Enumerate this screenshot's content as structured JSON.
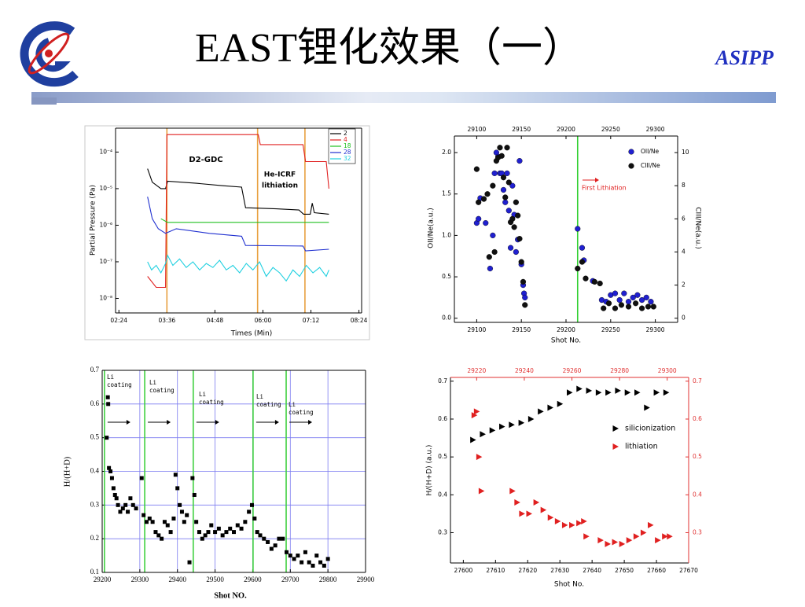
{
  "header": {
    "title": "EAST锂化效果（一）",
    "organization": "ASIPP"
  },
  "chart_data": [
    {
      "type": "line",
      "log_y": true,
      "xlabel": "Times (Min)",
      "ylabel": "Partial Pressure (Pa)",
      "xlim": [
        139,
        508
      ],
      "ylim": [
        4e-09,
        0.00045
      ],
      "xticks": [
        {
          "value": 144,
          "label": "02:24"
        },
        {
          "value": 216,
          "label": "03:36"
        },
        {
          "value": 288,
          "label": "04:48"
        },
        {
          "value": 360,
          "label": "06:00"
        },
        {
          "value": 432,
          "label": "07:12"
        },
        {
          "value": 504,
          "label": "08:24"
        }
      ],
      "yticks": [
        {
          "value": 1e-08,
          "label": "10⁻⁸"
        },
        {
          "value": 1e-07,
          "label": "10⁻⁷"
        },
        {
          "value": 1e-06,
          "label": "10⁻⁶"
        },
        {
          "value": 1e-05,
          "label": "10⁻⁵"
        },
        {
          "value": 0.0001,
          "label": "10⁻⁴"
        }
      ],
      "vlines": [
        216,
        352,
        423
      ],
      "vline_color": "#e8a040",
      "annotations": [
        "D2-GDC",
        "He-ICRF",
        "lithiation"
      ],
      "series": [
        {
          "name": "2",
          "color": "#000000",
          "marker": "line",
          "x": [
            187,
            194,
            207,
            214,
            217,
            260,
            300,
            328,
            334,
            380,
            414,
            421,
            431,
            434,
            437,
            459
          ],
          "values": [
            3.5e-05,
            1.5e-05,
            1e-05,
            1e-05,
            1.6e-05,
            1.4e-05,
            1.2e-05,
            1.1e-05,
            3e-06,
            2.8e-06,
            2.6e-06,
            2e-06,
            2e-06,
            4e-06,
            2.2e-06,
            2e-06
          ]
        },
        {
          "name": "4",
          "color": "#e02020",
          "marker": "line",
          "x": [
            187,
            200,
            214,
            216,
            280,
            353,
            356,
            420,
            424,
            455,
            459
          ],
          "values": [
            4e-08,
            2e-08,
            2e-08,
            0.0003,
            0.0003,
            0.0003,
            0.00016,
            0.00016,
            5.5e-05,
            5.5e-05,
            1e-05
          ]
        },
        {
          "name": "18",
          "color": "#20c020",
          "marker": "line",
          "x": [
            207,
            217,
            300,
            380,
            459
          ],
          "values": [
            1.5e-06,
            1.2e-06,
            1.2e-06,
            1.2e-06,
            1.2e-06
          ]
        },
        {
          "name": "28",
          "color": "#2030d0",
          "marker": "line",
          "x": [
            187,
            194,
            203,
            214,
            230,
            280,
            328,
            334,
            420,
            424,
            459
          ],
          "values": [
            6e-06,
            1.5e-06,
            8e-07,
            6e-07,
            8e-07,
            6e-07,
            5e-07,
            2.8e-07,
            2.7e-07,
            2e-07,
            2.2e-07
          ]
        },
        {
          "name": "32",
          "color": "#20d0e0",
          "marker": "line",
          "x": [
            187,
            193,
            200,
            207,
            214,
            217,
            225,
            235,
            245,
            255,
            265,
            275,
            285,
            295,
            305,
            315,
            325,
            335,
            345,
            355,
            365,
            375,
            385,
            395,
            405,
            415,
            425,
            435,
            445,
            455,
            459
          ],
          "values": [
            1e-07,
            6e-08,
            8e-08,
            5e-08,
            9e-08,
            1.5e-07,
            8e-08,
            1.2e-07,
            7e-08,
            1e-07,
            6e-08,
            9e-08,
            7e-08,
            1.1e-07,
            6e-08,
            8e-08,
            5e-08,
            9e-08,
            6e-08,
            1e-07,
            4e-08,
            7e-08,
            5e-08,
            3e-08,
            6e-08,
            4e-08,
            8e-08,
            5e-08,
            7e-08,
            4e-08,
            6e-08
          ]
        }
      ]
    },
    {
      "type": "scatter",
      "xlabel": "Shot No.",
      "ylabel": "OII/Ne(a.u.)",
      "y2label": "CIII/Ne(a.u.)",
      "xlim": [
        29075,
        29325
      ],
      "x2lim": [
        29075,
        29325
      ],
      "ylim": [
        -0.05,
        2.2
      ],
      "y2lim": [
        -0.25,
        11
      ],
      "xticks": [
        29100,
        29150,
        29200,
        29250,
        29300
      ],
      "x2ticks": [
        29100,
        29150,
        29200,
        29250,
        29300
      ],
      "yticks": [
        {
          "value": 0,
          "label": "0.0"
        },
        0.5,
        {
          "value": 1,
          "label": "1.0"
        },
        1.5,
        {
          "value": 2,
          "label": "2.0"
        }
      ],
      "y2ticks": [
        0,
        2,
        4,
        6,
        8,
        10
      ],
      "vlines": [
        29213
      ],
      "vline_color": "#30d030",
      "annotations": [
        "First Lithiation"
      ],
      "series": [
        {
          "name": "OII/Ne",
          "color": "#2020d0",
          "marker": "circle",
          "x": [
            29100,
            29102,
            29104,
            29110,
            29115,
            29118,
            29120,
            29122,
            29124,
            29126,
            29128,
            29130,
            29132,
            29134,
            29136,
            29138,
            29140,
            29142,
            29144,
            29146,
            29148,
            29150,
            29152,
            29153,
            29154,
            29213,
            29218,
            29220,
            29230,
            29240,
            29245,
            29250,
            29255,
            29260,
            29265,
            29270,
            29275,
            29280,
            29285,
            29290,
            29295
          ],
          "values": [
            1.15,
            1.2,
            1.45,
            1.15,
            0.6,
            1.0,
            1.75,
            2.0,
            1.95,
            1.75,
            1.75,
            1.55,
            1.4,
            1.75,
            1.3,
            0.85,
            1.6,
            1.25,
            0.8,
            0.95,
            1.9,
            0.65,
            0.4,
            0.3,
            0.25,
            1.08,
            0.85,
            0.7,
            0.45,
            0.22,
            0.2,
            0.28,
            0.3,
            0.22,
            0.3,
            0.2,
            0.25,
            0.28,
            0.22,
            0.25,
            0.2
          ]
        },
        {
          "name": "CIII/Ne",
          "color": "#101010",
          "marker": "circle",
          "axis": "y2",
          "x": [
            29100,
            29102,
            29108,
            29112,
            29114,
            29118,
            29120,
            29122,
            29124,
            29126,
            29128,
            29130,
            29132,
            29134,
            29136,
            29138,
            29140,
            29142,
            29144,
            29146,
            29148,
            29150,
            29152,
            29154,
            29213,
            29218,
            29222,
            29232,
            29238,
            29242,
            29248,
            29255,
            29262,
            29270,
            29278,
            29285,
            29292,
            29298
          ],
          "values": [
            9.0,
            7,
            7.2,
            7.5,
            3.7,
            8.0,
            4.0,
            9.5,
            9.7,
            10.3,
            9.8,
            8.5,
            7.3,
            10.3,
            8.2,
            5.8,
            6.0,
            5.5,
            7.0,
            6.2,
            4.8,
            3.4,
            2.2,
            0.8,
            3.0,
            3.4,
            2.4,
            2.2,
            2.1,
            0.6,
            0.9,
            0.6,
            0.8,
            0.7,
            0.9,
            0.6,
            0.7,
            0.7
          ]
        }
      ]
    },
    {
      "type": "scatter",
      "grid": true,
      "xlabel": "Shot NO.",
      "ylabel": "H/(H+D)",
      "xlim": [
        29200,
        29900
      ],
      "ylim": [
        0.1,
        0.7
      ],
      "xticks": [
        29200,
        29300,
        29400,
        29500,
        29600,
        29700,
        29800,
        29900
      ],
      "yticks": [
        0.1,
        0.2,
        0.3,
        0.4,
        0.5,
        0.6,
        0.7
      ],
      "vlines": [
        29206,
        29313,
        29442,
        29601,
        29689
      ],
      "vline_color": "#40d040",
      "annotations": [
        [
          "Li",
          "coating"
        ],
        [
          "Li",
          "coating"
        ],
        [
          "Li",
          "coating"
        ],
        [
          "Li",
          "coating"
        ],
        [
          "Li",
          "coating"
        ]
      ],
      "series": [
        {
          "name": "H/(H+D)",
          "color": "#000000",
          "marker": "square",
          "x": [
            29215,
            29216,
            29212,
            29218,
            29222,
            29226,
            29230,
            29234,
            29238,
            29242,
            29248,
            29255,
            29262,
            29268,
            29275,
            29282,
            29290,
            29305,
            29310,
            29318,
            29326,
            29334,
            29342,
            29350,
            29358,
            29366,
            29374,
            29382,
            29390,
            29395,
            29400,
            29406,
            29412,
            29418,
            29425,
            29432,
            29440,
            29445,
            29450,
            29458,
            29466,
            29474,
            29482,
            29490,
            29500,
            29510,
            29520,
            29530,
            29540,
            29550,
            29560,
            29570,
            29580,
            29590,
            29598,
            29605,
            29612,
            29620,
            29630,
            29640,
            29650,
            29660,
            29670,
            29680,
            29690,
            29700,
            29710,
            29720,
            29730,
            29740,
            29750,
            29760,
            29770,
            29780,
            29790,
            29800
          ],
          "values": [
            0.62,
            0.6,
            0.5,
            0.41,
            0.4,
            0.38,
            0.35,
            0.33,
            0.32,
            0.3,
            0.28,
            0.29,
            0.3,
            0.28,
            0.32,
            0.3,
            0.29,
            0.38,
            0.27,
            0.25,
            0.26,
            0.25,
            0.22,
            0.21,
            0.2,
            0.25,
            0.24,
            0.22,
            0.26,
            0.39,
            0.35,
            0.3,
            0.28,
            0.25,
            0.27,
            0.13,
            0.38,
            0.33,
            0.25,
            0.22,
            0.2,
            0.21,
            0.22,
            0.24,
            0.22,
            0.23,
            0.21,
            0.22,
            0.23,
            0.22,
            0.24,
            0.23,
            0.25,
            0.28,
            0.3,
            0.26,
            0.22,
            0.21,
            0.2,
            0.19,
            0.17,
            0.18,
            0.2,
            0.2,
            0.16,
            0.15,
            0.14,
            0.15,
            0.13,
            0.16,
            0.13,
            0.12,
            0.15,
            0.13,
            0.12,
            0.14
          ]
        }
      ]
    },
    {
      "type": "scatter",
      "secondary_axis_color": "#e03030",
      "xlabel": "Shot No.",
      "ylabel": "H/(H+D) (a.u.)",
      "xlim": [
        27596,
        27670
      ],
      "x2lim": [
        29209,
        29309
      ],
      "ylim": [
        0.22,
        0.71
      ],
      "y2lim": [
        0.22,
        0.71
      ],
      "xticks": [
        27600,
        27610,
        27620,
        27630,
        27640,
        27650,
        27660,
        27670
      ],
      "x2ticks": [
        29220,
        29240,
        29260,
        29280,
        29300
      ],
      "yticks": [
        0.3,
        0.4,
        0.5,
        0.6,
        0.7
      ],
      "y2ticks": [
        0.3,
        0.4,
        0.5,
        0.6,
        0.7
      ],
      "series": [
        {
          "name": "silicionization",
          "color": "#000000",
          "marker": "triangle",
          "x": [
            27603,
            27606,
            27609,
            27612,
            27615,
            27618,
            27621,
            27624,
            27627,
            27630,
            27633,
            27636,
            27639,
            27642,
            27645,
            27648,
            27651,
            27654,
            27657,
            27660,
            27663
          ],
          "values": [
            0.545,
            0.56,
            0.57,
            0.58,
            0.585,
            0.59,
            0.6,
            0.62,
            0.63,
            0.64,
            0.67,
            0.68,
            0.675,
            0.67,
            0.67,
            0.675,
            0.67,
            0.67,
            0.63,
            0.67,
            0.67
          ]
        },
        {
          "name": "lithiation",
          "color": "#e02020",
          "marker": "triangle",
          "axis": "y2",
          "x_axis": "x2",
          "x": [
            29219,
            29220,
            29221,
            29222,
            29235,
            29237,
            29239,
            29242,
            29245,
            29248,
            29251,
            29254,
            29257,
            29260,
            29263,
            29265,
            29266,
            29272,
            29275,
            29278,
            29281,
            29284,
            29287,
            29290,
            29293,
            29296,
            29299,
            29301
          ],
          "values": [
            0.61,
            0.62,
            0.5,
            0.41,
            0.41,
            0.38,
            0.35,
            0.35,
            0.38,
            0.36,
            0.34,
            0.33,
            0.32,
            0.32,
            0.325,
            0.33,
            0.29,
            0.28,
            0.27,
            0.275,
            0.27,
            0.28,
            0.29,
            0.3,
            0.32,
            0.28,
            0.29,
            0.29
          ]
        }
      ]
    }
  ]
}
